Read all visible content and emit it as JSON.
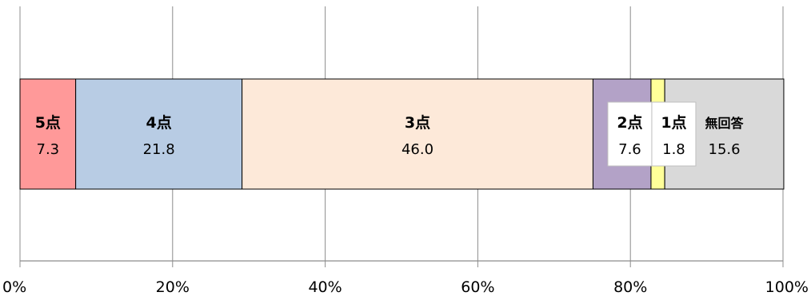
{
  "chart_data": {
    "type": "bar",
    "orientation": "horizontal-stacked-100",
    "categories": [
      ""
    ],
    "series": [
      {
        "name": "5点",
        "values": [
          7.3
        ],
        "color": "#FF9999"
      },
      {
        "name": "4点",
        "values": [
          21.8
        ],
        "color": "#B8CCE4"
      },
      {
        "name": "3点",
        "values": [
          46.0
        ],
        "color": "#FDE9D9"
      },
      {
        "name": "2点",
        "values": [
          7.6
        ],
        "color": "#B3A2C7"
      },
      {
        "name": "1点",
        "values": [
          1.8
        ],
        "color": "#FFFF99"
      },
      {
        "name": "無回答",
        "values": [
          15.6
        ],
        "color": "#D9D9D9"
      }
    ],
    "data_labels": [
      {
        "name": "5点",
        "value": "7.3"
      },
      {
        "name": "4点",
        "value": "21.8"
      },
      {
        "name": "3点",
        "value": "46.0"
      },
      {
        "name": "2点",
        "value": "7.6"
      },
      {
        "name": "1点",
        "value": "1.8"
      },
      {
        "name": "無回答",
        "value": "15.6"
      }
    ],
    "x_tick_labels": [
      "0%",
      "20%",
      "40%",
      "60%",
      "80%",
      "100%"
    ],
    "xlim": [
      0,
      100
    ],
    "grid": true,
    "legend": "none",
    "title": "",
    "xlabel": "",
    "ylabel": ""
  }
}
